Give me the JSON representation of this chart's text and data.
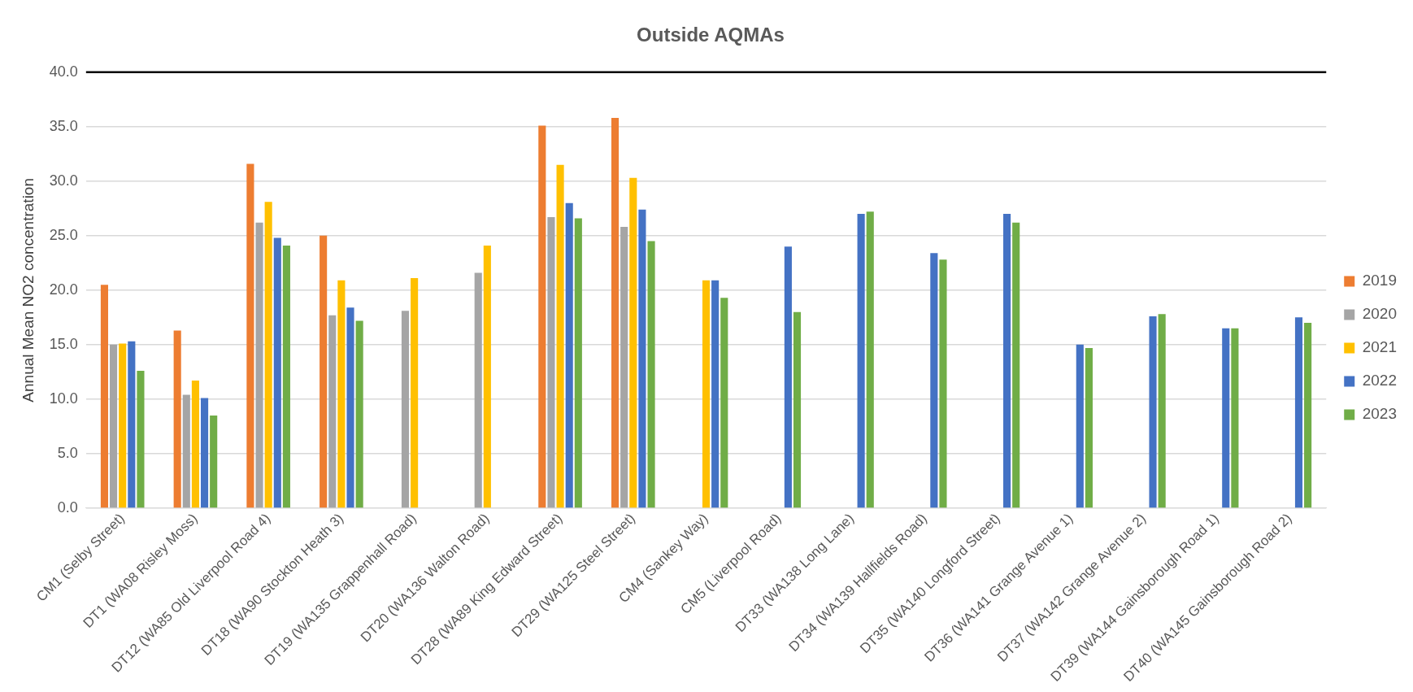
{
  "chart_data": {
    "type": "bar",
    "title": "Outside AQMAs",
    "ylabel": "Annual Mean NO2 concentration",
    "categories": [
      "CM1 (Selby Street)",
      "DT1 (WA08 Risley Moss)",
      "DT12 (WA85 Old Liverpool Road 4)",
      "DT18 (WA90 Stockton Heath 3)",
      "DT19 (WA135 Grappenhall Road)",
      "DT20 (WA136 Walton Road)",
      "DT28 (WA89 King Edward Street)",
      "DT29 (WA125 Steel Street)",
      "CM4 (Sankey Way)",
      "CM5 (Liverpool Road)",
      "DT33 (WA138 Long Lane)",
      "DT34 (WA139 Hallfields Road)",
      "DT35 (WA140 Longford Street)",
      "DT36 (WA141 Grange Avenue 1)",
      "DT37 (WA142 Grange Avenue 2)",
      "DT39 (WA144 Gainsborough Road 1)",
      "DT40 (WA145 Gainsborough Road 2)"
    ],
    "series": [
      {
        "name": "2019",
        "color": "#ed7d31",
        "values": [
          20.5,
          16.3,
          31.6,
          25.0,
          null,
          null,
          35.1,
          35.8,
          null,
          null,
          null,
          null,
          null,
          null,
          null,
          null,
          null
        ]
      },
      {
        "name": "2020",
        "color": "#a5a5a5",
        "values": [
          15.0,
          10.4,
          26.2,
          17.7,
          18.1,
          21.6,
          26.7,
          25.8,
          null,
          null,
          null,
          null,
          null,
          null,
          null,
          null,
          null
        ]
      },
      {
        "name": "2021",
        "color": "#ffc000",
        "values": [
          15.1,
          11.7,
          28.1,
          20.9,
          21.1,
          24.1,
          31.5,
          30.3,
          20.9,
          null,
          null,
          null,
          null,
          null,
          null,
          null,
          null
        ]
      },
      {
        "name": "2022",
        "color": "#4472c4",
        "values": [
          15.3,
          10.1,
          24.8,
          18.4,
          null,
          null,
          28.0,
          27.4,
          20.9,
          24.0,
          27.0,
          23.4,
          27.0,
          15.0,
          17.6,
          16.5,
          17.5
        ]
      },
      {
        "name": "2023",
        "color": "#70ad47",
        "values": [
          12.6,
          8.5,
          24.1,
          17.2,
          null,
          null,
          26.6,
          24.5,
          19.3,
          18.0,
          27.2,
          22.8,
          26.2,
          14.7,
          17.8,
          16.5,
          17.0
        ]
      }
    ],
    "ylim": [
      0,
      40
    ],
    "yticks": [
      {
        "value": 0,
        "label": "0.0"
      },
      {
        "value": 5,
        "label": "5.0"
      },
      {
        "value": 10,
        "label": "10.0"
      },
      {
        "value": 15,
        "label": "15.0"
      },
      {
        "value": 20,
        "label": "20.0"
      },
      {
        "value": 25,
        "label": "25.0"
      },
      {
        "value": 30,
        "label": "30.0"
      },
      {
        "value": 35,
        "label": "35.0"
      },
      {
        "value": 40,
        "label": "40.0"
      }
    ],
    "ref_lines": [
      {
        "axis": "y",
        "value": 40,
        "color": "#000000"
      }
    ],
    "grid": "y",
    "legend": "right"
  }
}
